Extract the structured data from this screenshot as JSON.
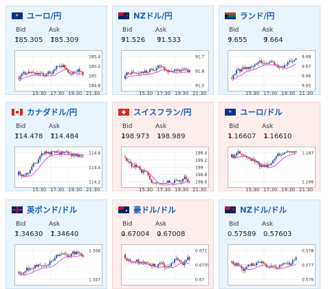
{
  "cards": [
    {
      "id": "c1",
      "title": "ユーロ/円",
      "flag": "eu",
      "trend": "up",
      "bid_label": "Bid",
      "ask_label": "Ask",
      "bid_arrow": "↑",
      "ask_arrow": "↑",
      "bid": "185.305",
      "ask": "185.309",
      "ticks": [
        "185.4",
        "185.2",
        "185",
        "184.8"
      ],
      "xticks": [
        "15:30",
        "17:30",
        "19:30",
        "21:30"
      ]
    },
    {
      "id": "c2",
      "title": "NZドル/円",
      "flag": "nz",
      "trend": "up",
      "bid_label": "Bid",
      "ask_label": "Ask",
      "bid_arrow": "↑",
      "ask_arrow": "↑",
      "bid": "91.526",
      "ask": "91.533",
      "ticks": [
        "91.7",
        "91.6",
        "91.5"
      ],
      "xticks": [
        "15:30",
        "17:30",
        "19:30",
        "21:30"
      ]
    },
    {
      "id": "c3",
      "title": "ランド/円",
      "flag": "za",
      "trend": "up",
      "bid_label": "Bid",
      "ask_label": "Ask",
      "bid_arrow": "↑",
      "ask_arrow": "↑",
      "bid": "9.655",
      "ask": "9.664",
      "ticks": [
        "9.68",
        "9.67",
        "9.66",
        "9.65"
      ],
      "xticks": [
        "15:30",
        "17:30",
        "19:30",
        "21:30"
      ]
    },
    {
      "id": "c4",
      "title": "カナダドル/円",
      "flag": "ca",
      "trend": "up",
      "bid_label": "Bid",
      "ask_label": "Ask",
      "bid_arrow": "↑",
      "ask_arrow": "↑",
      "bid": "114.478",
      "ask": "114.484",
      "ticks": [
        "114.6",
        "114.4",
        "114.2"
      ],
      "xticks": [
        "15:30",
        "17:30",
        "19:30",
        "21:30"
      ]
    },
    {
      "id": "c5",
      "title": "スイスフラン/円",
      "flag": "ch",
      "trend": "down",
      "bid_label": "Bid",
      "ask_label": "Ask",
      "bid_arrow": "↓",
      "ask_arrow": "↓",
      "bid": "198.973",
      "ask": "198.989",
      "ticks": [
        "199.4",
        "199.2",
        "199",
        "198.8",
        "198.6"
      ],
      "xticks": [
        "15:30",
        "17:30",
        "19:30",
        "21:30"
      ]
    },
    {
      "id": "c6",
      "title": "ユーロ/ドル",
      "flag": "eu",
      "trend": "down",
      "bid_label": "Bid",
      "ask_label": "Ask",
      "bid_arrow": "↓",
      "ask_arrow": "↓",
      "bid": "1.16607",
      "ask": "1.16610",
      "ticks": [
        "1.167",
        "1.166"
      ],
      "xticks": [
        "15:30",
        "17:30",
        "19:30",
        "21:30"
      ]
    },
    {
      "id": "c7",
      "title": "英ポンド/ドル",
      "flag": "gb",
      "trend": "up",
      "bid_label": "Bid",
      "ask_label": "Ask",
      "bid_arrow": "↑",
      "ask_arrow": "↑",
      "bid": "1.34630",
      "ask": "1.34640",
      "ticks": [
        "1.348",
        "1.347"
      ],
      "xticks": []
    },
    {
      "id": "c8",
      "title": "豪ドル/ドル",
      "flag": "au",
      "trend": "down",
      "bid_label": "Bid",
      "ask_label": "Ask",
      "bid_arrow": "↓",
      "ask_arrow": "↓",
      "bid": "0.67004",
      "ask": "0.67008",
      "ticks": [
        "0.671",
        "0.6705",
        "0.67"
      ],
      "xticks": []
    },
    {
      "id": "c9",
      "title": "NZドル/ドル",
      "flag": "nz",
      "trend": "flat",
      "bid_label": "Bid",
      "ask_label": "Ask",
      "bid_arrow": "",
      "ask_arrow": "",
      "bid": "0.57589",
      "ask": "0.57603",
      "ticks": [
        "0.578",
        "0.577",
        "0.576"
      ],
      "xticks": []
    }
  ]
}
